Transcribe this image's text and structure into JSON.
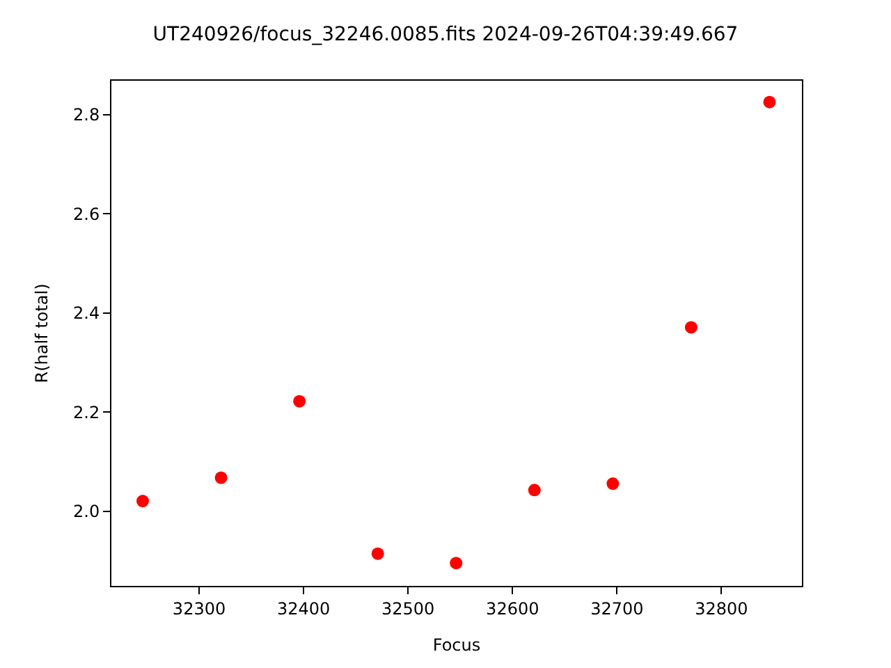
{
  "chart_data": {
    "type": "scatter",
    "title": "UT240926/focus_32246.0085.fits 2024-09-26T04:39:49.667",
    "xlabel": "Focus",
    "ylabel": "R(half total)",
    "x": [
      32246,
      32321,
      32396,
      32471,
      32546,
      32621,
      32696,
      32771,
      32846
    ],
    "series": [
      {
        "color": "#ff0000",
        "values": [
          2.021,
          2.068,
          2.222,
          1.915,
          1.896,
          2.043,
          2.056,
          2.371,
          2.825
        ]
      }
    ],
    "xlim": [
      32216,
      32877
    ],
    "ylim": [
      1.85,
      2.868
    ],
    "xticks": [
      32300,
      32400,
      32500,
      32600,
      32700,
      32800
    ],
    "yticks": [
      {
        "value": 2.0,
        "label": "2.0"
      },
      {
        "value": 2.2,
        "label": "2.2"
      },
      {
        "value": 2.4,
        "label": "2.4"
      },
      {
        "value": 2.6,
        "label": "2.6"
      },
      {
        "value": 2.8,
        "label": "2.8"
      }
    ],
    "marker": "circle",
    "legend": false
  }
}
